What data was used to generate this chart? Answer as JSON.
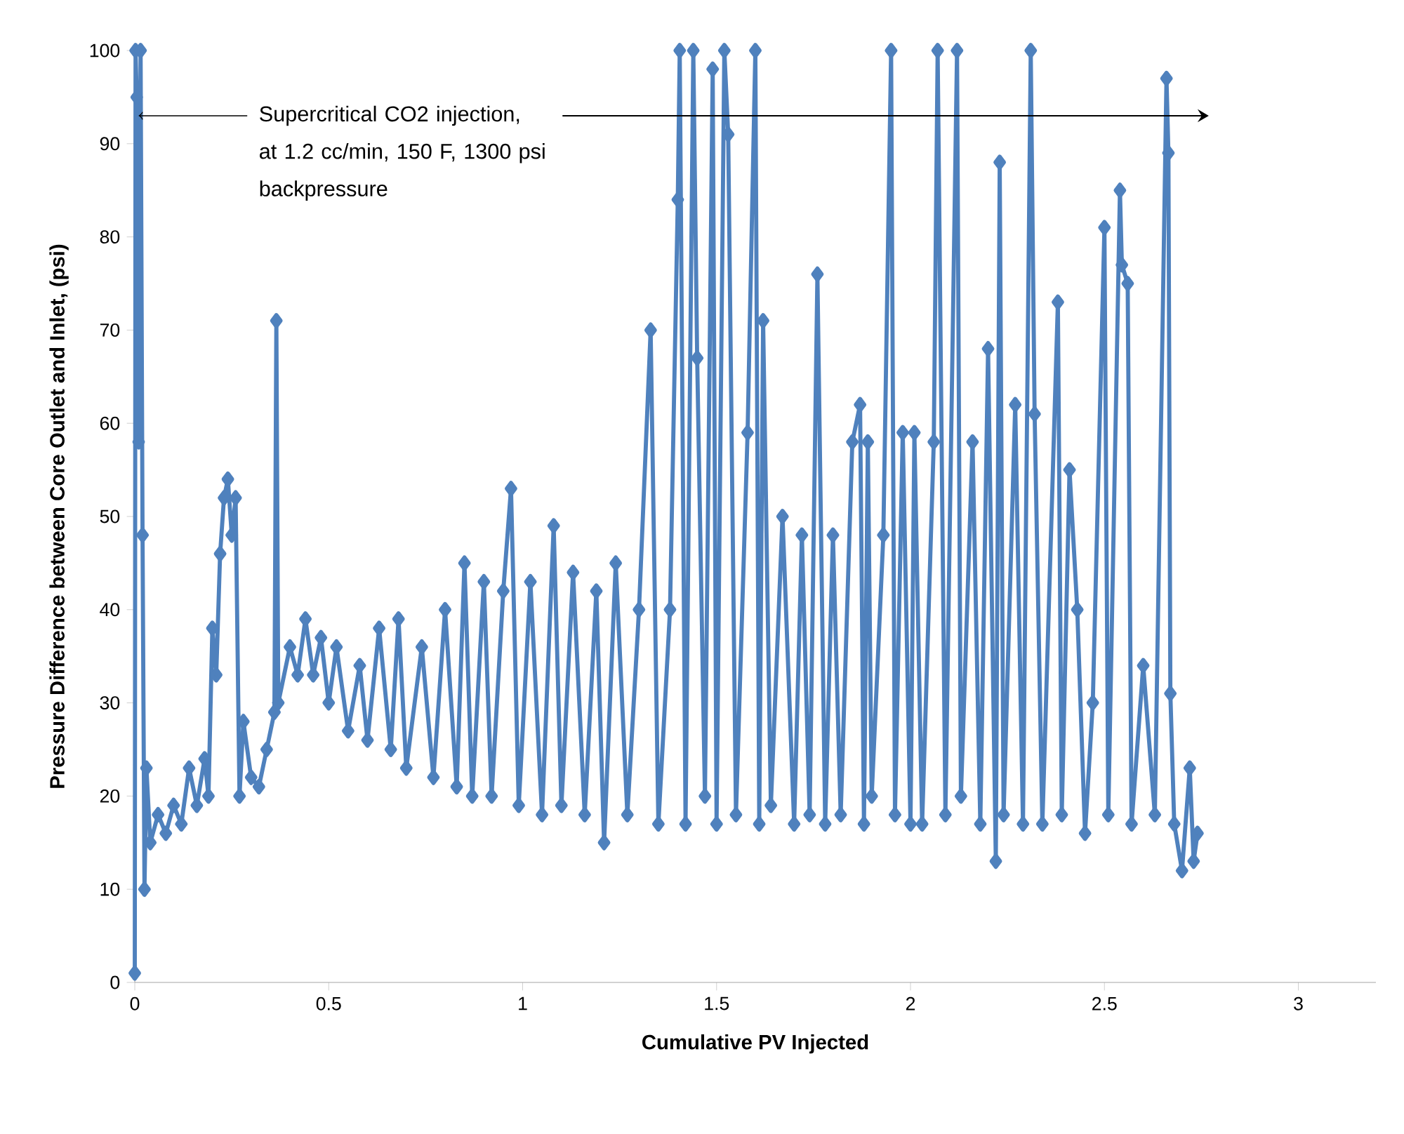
{
  "chart_data": {
    "type": "line",
    "xlabel": "Cumulative PV Injected",
    "ylabel": "Pressure Difference between Core Outlet and Inlet, (psi)",
    "annotations": [
      {
        "text": "Supercritical CO2 injection, at 1.2 cc/min, 150 F, 1300 psi backpressure",
        "x": 0.01,
        "y": 93
      }
    ],
    "xlim": [
      0,
      3.2
    ],
    "xticks": [
      0,
      0.5,
      1,
      1.5,
      2,
      2.5,
      3
    ],
    "ylim": [
      0,
      100
    ],
    "yticks": [
      0,
      10,
      20,
      30,
      40,
      50,
      60,
      70,
      80,
      90,
      100
    ],
    "grid": false,
    "marker": "diamond",
    "line_style": "solid",
    "series": [
      {
        "color": "#4f81bd",
        "x": [
          0,
          0.002,
          0.005,
          0.01,
          0.015,
          0.02,
          0.025,
          0.03,
          0.04,
          0.06,
          0.08,
          0.1,
          0.12,
          0.14,
          0.16,
          0.18,
          0.19,
          0.2,
          0.21,
          0.22,
          0.23,
          0.24,
          0.25,
          0.26,
          0.27,
          0.28,
          0.3,
          0.32,
          0.34,
          0.36,
          0.365,
          0.37,
          0.4,
          0.42,
          0.44,
          0.46,
          0.48,
          0.5,
          0.52,
          0.55,
          0.58,
          0.6,
          0.63,
          0.66,
          0.68,
          0.7,
          0.74,
          0.77,
          0.8,
          0.83,
          0.85,
          0.87,
          0.9,
          0.92,
          0.95,
          0.97,
          0.99,
          1.02,
          1.05,
          1.08,
          1.1,
          1.13,
          1.16,
          1.19,
          1.21,
          1.24,
          1.27,
          1.3,
          1.33,
          1.35,
          1.38,
          1.4,
          1.405,
          1.42,
          1.44,
          1.45,
          1.47,
          1.49,
          1.5,
          1.52,
          1.53,
          1.55,
          1.58,
          1.6,
          1.61,
          1.62,
          1.64,
          1.67,
          1.7,
          1.72,
          1.74,
          1.76,
          1.78,
          1.8,
          1.82,
          1.85,
          1.87,
          1.88,
          1.89,
          1.9,
          1.93,
          1.95,
          1.96,
          1.98,
          2.0,
          2.01,
          2.03,
          2.06,
          2.07,
          2.09,
          2.12,
          2.13,
          2.16,
          2.18,
          2.2,
          2.22,
          2.23,
          2.24,
          2.27,
          2.29,
          2.31,
          2.32,
          2.34,
          2.38,
          2.39,
          2.41,
          2.43,
          2.45,
          2.47,
          2.5,
          2.51,
          2.54,
          2.545,
          2.56,
          2.57,
          2.6,
          2.63,
          2.66,
          2.665,
          2.67,
          2.68,
          2.7,
          2.72,
          2.73,
          2.74
        ],
        "values": [
          1,
          100,
          95,
          58,
          100,
          48,
          10,
          23,
          15,
          18,
          16,
          19,
          17,
          23,
          19,
          24,
          20,
          38,
          33,
          46,
          52,
          54,
          48,
          52,
          20,
          28,
          22,
          21,
          25,
          29,
          71,
          30,
          36,
          33,
          39,
          33,
          37,
          30,
          36,
          27,
          34,
          26,
          38,
          25,
          39,
          23,
          36,
          22,
          40,
          21,
          45,
          20,
          43,
          20,
          42,
          53,
          19,
          43,
          18,
          49,
          19,
          44,
          18,
          42,
          15,
          45,
          18,
          40,
          70,
          17,
          40,
          84,
          100,
          17,
          100,
          67,
          20,
          98,
          17,
          100,
          91,
          18,
          59,
          100,
          17,
          71,
          19,
          50,
          17,
          48,
          18,
          76,
          17,
          48,
          18,
          58,
          62,
          17,
          58,
          20,
          48,
          100,
          18,
          59,
          17,
          59,
          17,
          58,
          100,
          18,
          100,
          20,
          58,
          17,
          68,
          13,
          88,
          18,
          62,
          17,
          100,
          61,
          17,
          73,
          18,
          55,
          40,
          16,
          30,
          81,
          18,
          85,
          77,
          75,
          17,
          34,
          18,
          97,
          89,
          31,
          17,
          12,
          23,
          13,
          16
        ]
      }
    ]
  }
}
